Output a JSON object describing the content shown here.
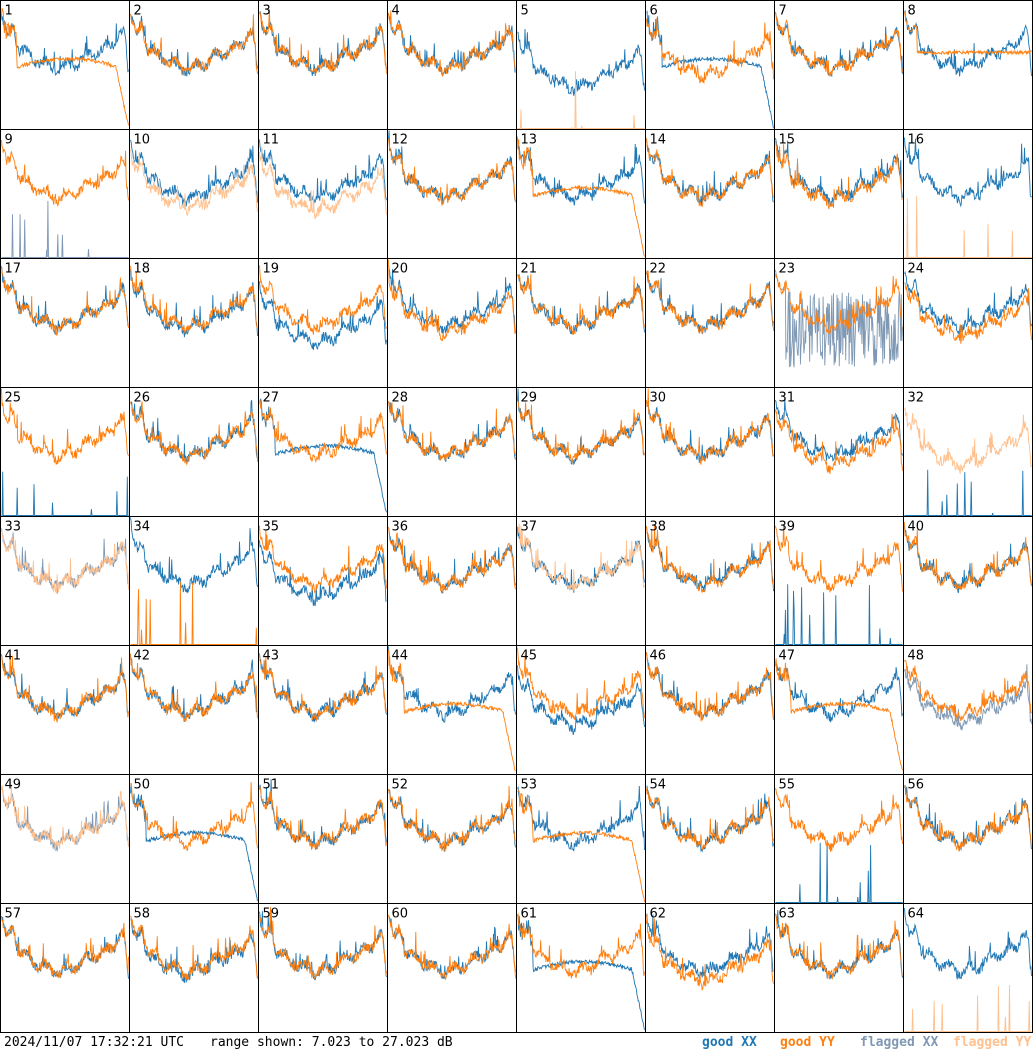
{
  "footer": {
    "timestamp": "2024/11/07 17:32:21 UTC",
    "range": "range shown: 7.023 to 27.023 dB"
  },
  "legend": [
    {
      "key": "goodXX",
      "label": "good XX",
      "color": "#1f77b4"
    },
    {
      "key": "goodYY",
      "label": "good YY",
      "color": "#ff7f0e"
    },
    {
      "key": "flaggedXX",
      "label": "flagged XX",
      "color": "#7f99b4"
    },
    {
      "key": "flaggedYY",
      "label": "flagged YY",
      "color": "#ffc08d"
    }
  ],
  "chart_data": {
    "type": "line",
    "title": "",
    "xlabel": "",
    "ylabel": "",
    "ylim": [
      7.023,
      27.023
    ],
    "grid": "8x8 small multiples",
    "panel_ids": [
      1,
      2,
      3,
      4,
      5,
      6,
      7,
      8,
      9,
      10,
      11,
      12,
      13,
      14,
      15,
      16,
      17,
      18,
      19,
      20,
      21,
      22,
      23,
      24,
      25,
      26,
      27,
      28,
      29,
      30,
      31,
      32,
      33,
      34,
      35,
      36,
      37,
      38,
      39,
      40,
      41,
      42,
      43,
      44,
      45,
      46,
      47,
      48,
      49,
      50,
      51,
      52,
      53,
      54,
      55,
      56,
      57,
      58,
      59,
      60,
      61,
      62,
      63,
      64
    ],
    "series": [
      {
        "name": "good XX",
        "shape_key": "xx"
      },
      {
        "name": "good YY",
        "shape_key": "yy"
      },
      {
        "name": "flagged XX",
        "shape_key": "xx"
      },
      {
        "name": "flagged YY",
        "shape_key": "yy"
      }
    ],
    "panels": {
      "1": {
        "xx": "normal",
        "yy": "dropout",
        "xxOff": 0,
        "yyOff": 0
      },
      "2": {
        "xx": "normal",
        "yy": "normal",
        "xxOff": 0,
        "yyOff": 0
      },
      "3": {
        "xx": "normal",
        "yy": "normal",
        "xxOff": 0,
        "yyOff": 0
      },
      "4": {
        "xx": "normal",
        "yy": "normal",
        "xxOff": 0,
        "yyOff": 0
      },
      "5": {
        "xx": "normal",
        "yy": "spikes",
        "xxOff": -3,
        "yyOff": 0,
        "yyFlagged": true
      },
      "6": {
        "xx": "dropout",
        "yy": "normal",
        "xxOff": 0,
        "yyOff": -1
      },
      "7": {
        "xx": "normal",
        "yy": "normal",
        "xxOff": 0,
        "yyOff": 0
      },
      "8": {
        "xx": "normal",
        "yy": "plateau",
        "xxOff": 0,
        "yyOff": 0
      },
      "9": {
        "xx": "spikes",
        "yy": "normal",
        "xxOff": 0,
        "yyOff": 0,
        "xxFlagged": true
      },
      "10": {
        "xx": "normal",
        "yy": "normal",
        "xxOff": 0,
        "yyOff": -1.5,
        "yyFlagged": true
      },
      "11": {
        "xx": "normal",
        "yy": "normal",
        "xxOff": 0,
        "yyOff": -2,
        "yyFlagged": true
      },
      "12": {
        "xx": "normal",
        "yy": "normal",
        "xxOff": 0,
        "yyOff": 0
      },
      "13": {
        "xx": "normal",
        "yy": "dropout",
        "xxOff": 0,
        "yyOff": 0
      },
      "14": {
        "xx": "normal",
        "yy": "normal",
        "xxOff": 0,
        "yyOff": 0
      },
      "15": {
        "xx": "normal",
        "yy": "normal",
        "xxOff": 0,
        "yyOff": -0.5
      },
      "16": {
        "xx": "normal",
        "yy": "spikes",
        "xxOff": 0,
        "yyOff": 0,
        "yyFlagged": true
      },
      "17": {
        "xx": "normal",
        "yy": "normal",
        "xxOff": 0,
        "yyOff": 0
      },
      "18": {
        "xx": "normal",
        "yy": "normal",
        "xxOff": -0.5,
        "yyOff": 0
      },
      "19": {
        "xx": "normal",
        "yy": "normal",
        "xxOff": -2.5,
        "yyOff": 0
      },
      "20": {
        "xx": "normal",
        "yy": "normal",
        "xxOff": 0,
        "yyOff": -1
      },
      "21": {
        "xx": "normal",
        "yy": "normal",
        "xxOff": 0,
        "yyOff": 0
      },
      "22": {
        "xx": "normal",
        "yy": "normal",
        "xxOff": 0,
        "yyOff": 0
      },
      "23": {
        "xx": "noisy",
        "yy": "normal",
        "xxOff": 0,
        "yyOff": 0,
        "xxFlagged": true
      },
      "24": {
        "xx": "normal",
        "yy": "normal",
        "xxOff": 0,
        "yyOff": -1.5
      },
      "25": {
        "xx": "spikes",
        "yy": "normal",
        "xxOff": 0,
        "yyOff": 0
      },
      "26": {
        "xx": "normal",
        "yy": "normal",
        "xxOff": 0,
        "yyOff": 0
      },
      "27": {
        "xx": "dropout",
        "yy": "normal",
        "xxOff": 0,
        "yyOff": 0
      },
      "28": {
        "xx": "normal",
        "yy": "normal",
        "xxOff": 0,
        "yyOff": 0
      },
      "29": {
        "xx": "normal",
        "yy": "normal",
        "xxOff": 0,
        "yyOff": 0
      },
      "30": {
        "xx": "normal",
        "yy": "normal",
        "xxOff": 0,
        "yyOff": 0
      },
      "31": {
        "xx": "normal",
        "yy": "normal",
        "xxOff": 0,
        "yyOff": -1.5
      },
      "32": {
        "xx": "spikes",
        "yy": "normal",
        "xxOff": 0,
        "yyOff": -1.5,
        "yyFlagged": true
      },
      "33": {
        "xx": "normal",
        "yy": "normal",
        "xxOff": 0,
        "yyOff": 0,
        "xxFlagged": true,
        "yyFlagged": true
      },
      "34": {
        "xx": "normal",
        "yy": "spikes",
        "xxOff": 0,
        "yyOff": 0
      },
      "35": {
        "xx": "normal",
        "yy": "normal",
        "xxOff": -2,
        "yyOff": 0
      },
      "36": {
        "xx": "normal",
        "yy": "normal",
        "xxOff": 0,
        "yyOff": 0
      },
      "37": {
        "xx": "normal",
        "yy": "normal",
        "xxOff": 0,
        "yyOff": 0,
        "yyFlagged": true
      },
      "38": {
        "xx": "normal",
        "yy": "normal",
        "xxOff": 0,
        "yyOff": 0
      },
      "39": {
        "xx": "spikes",
        "yy": "normal",
        "xxOff": 0,
        "yyOff": 0
      },
      "40": {
        "xx": "normal",
        "yy": "normal",
        "xxOff": 0,
        "yyOff": 0
      },
      "41": {
        "xx": "normal",
        "yy": "normal",
        "xxOff": 0,
        "yyOff": 0
      },
      "42": {
        "xx": "normal",
        "yy": "normal",
        "xxOff": 0,
        "yyOff": 0
      },
      "43": {
        "xx": "normal",
        "yy": "normal",
        "xxOff": 0,
        "yyOff": 0
      },
      "44": {
        "xx": "normal",
        "yy": "dropout",
        "xxOff": 0,
        "yyOff": 0
      },
      "45": {
        "xx": "normal",
        "yy": "normal",
        "xxOff": -2,
        "yyOff": 0
      },
      "46": {
        "xx": "normal",
        "yy": "normal",
        "xxOff": 0,
        "yyOff": 0
      },
      "47": {
        "xx": "normal",
        "yy": "dropout",
        "xxOff": 0,
        "yyOff": 0
      },
      "48": {
        "xx": "normal",
        "yy": "normal",
        "xxOff": -1.5,
        "yyOff": 0,
        "xxFlagged": true
      },
      "49": {
        "xx": "normal",
        "yy": "normal",
        "xxOff": 0,
        "yyOff": 0,
        "xxFlagged": true,
        "yyFlagged": true
      },
      "50": {
        "xx": "dropout",
        "yy": "normal",
        "xxOff": 0,
        "yyOff": 0
      },
      "51": {
        "xx": "normal",
        "yy": "normal",
        "xxOff": 0,
        "yyOff": 0
      },
      "52": {
        "xx": "normal",
        "yy": "normal",
        "xxOff": 0,
        "yyOff": 0
      },
      "53": {
        "xx": "normal",
        "yy": "dropout",
        "xxOff": 0,
        "yyOff": 0
      },
      "54": {
        "xx": "normal",
        "yy": "normal",
        "xxOff": 0,
        "yyOff": 0
      },
      "55": {
        "xx": "spikes",
        "yy": "normal",
        "xxOff": 0,
        "yyOff": 0
      },
      "56": {
        "xx": "normal",
        "yy": "normal",
        "xxOff": 0,
        "yyOff": 0
      },
      "57": {
        "xx": "normal",
        "yy": "normal",
        "xxOff": 0,
        "yyOff": 0
      },
      "58": {
        "xx": "normal",
        "yy": "normal",
        "xxOff": -0.5,
        "yyOff": 0
      },
      "59": {
        "xx": "normal",
        "yy": "normal",
        "xxOff": 0,
        "yyOff": 0
      },
      "60": {
        "xx": "normal",
        "yy": "normal",
        "xxOff": 0,
        "yyOff": 0
      },
      "61": {
        "xx": "dropout",
        "yy": "normal",
        "xxOff": 0,
        "yyOff": 0
      },
      "62": {
        "xx": "normal",
        "yy": "normal",
        "xxOff": 0,
        "yyOff": -1.5
      },
      "63": {
        "xx": "normal",
        "yy": "normal",
        "xxOff": 0,
        "yyOff": 0
      },
      "64": {
        "xx": "normal",
        "yy": "spikes",
        "xxOff": 0,
        "yyOff": 0,
        "yyFlagged": true
      }
    }
  }
}
